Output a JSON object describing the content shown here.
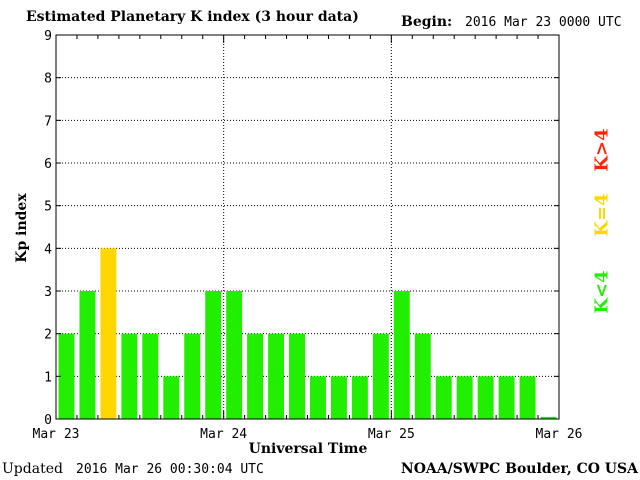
{
  "header": {
    "title": "Estimated Planetary K index (3 hour data)",
    "begin_label": "Begin:",
    "begin_value": "2016 Mar 23 0000 UTC"
  },
  "footer": {
    "updated_label": "Updated",
    "updated_value": "2016 Mar 26 00:30:04 UTC",
    "credit": "NOAA/SWPC Boulder, CO USA"
  },
  "legend": {
    "high": {
      "label": "K>4",
      "color": "#ff2200"
    },
    "mid": {
      "label": "K=4",
      "color": "#ffd700"
    },
    "low": {
      "label": "K<4",
      "color": "#22ee00"
    }
  },
  "chart_data": {
    "type": "bar",
    "xlabel": "Universal Time",
    "ylabel": "Kp index",
    "ylim": [
      0,
      9
    ],
    "yticks": [
      "0",
      "1",
      "2",
      "3",
      "4",
      "5",
      "6",
      "7",
      "8",
      "9"
    ],
    "x_tick_labels": [
      "Mar 23",
      "Mar 24",
      "Mar 25",
      "Mar 26"
    ],
    "x_start": "2016-03-23 00:00 UTC",
    "interval_hours": 3,
    "values": [
      2,
      3,
      4,
      2,
      2,
      1,
      2,
      3,
      3,
      2,
      2,
      2,
      1,
      1,
      1,
      2,
      3,
      2,
      1,
      1,
      1,
      1,
      1,
      0.05
    ],
    "grid": true,
    "colors": {
      "below4": "#22ee00",
      "equal4": "#ffd700",
      "above4": "#ff2200"
    }
  }
}
